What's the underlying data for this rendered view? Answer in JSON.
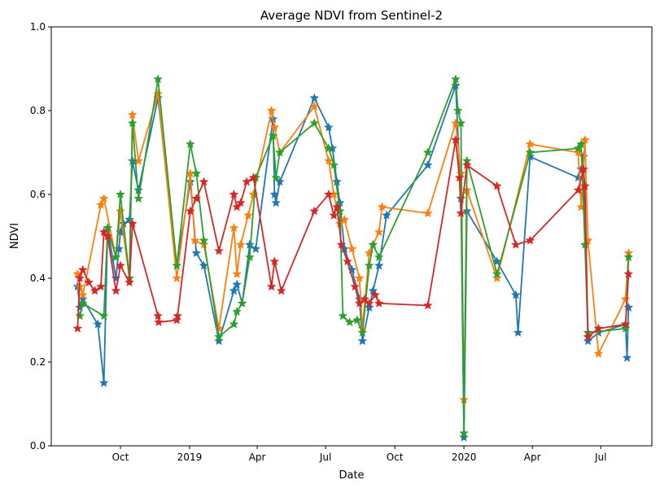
{
  "chart_data": {
    "type": "line",
    "title": "Average NDVI from Sentinel-2",
    "xlabel": "Date",
    "ylabel": "NDVI",
    "xlim": [
      "2018-07-01",
      "2020-09-07"
    ],
    "ylim": [
      0.0,
      1.0
    ],
    "yticks": [
      "0.0",
      "0.2",
      "0.4",
      "0.6",
      "0.8",
      "1.0"
    ],
    "xticks": [
      {
        "date": "2018-10-01",
        "label": "Oct"
      },
      {
        "date": "2019-01-01",
        "label": "2019"
      },
      {
        "date": "2019-04-01",
        "label": "Apr"
      },
      {
        "date": "2019-07-01",
        "label": "Jul"
      },
      {
        "date": "2019-10-01",
        "label": "Oct"
      },
      {
        "date": "2020-01-01",
        "label": "2020"
      },
      {
        "date": "2020-04-01",
        "label": "Apr"
      },
      {
        "date": "2020-07-01",
        "label": "Jul"
      }
    ],
    "grid": false,
    "marker": "star",
    "series": [
      {
        "name": "series-1",
        "color": "#1f77b4",
        "points": [
          [
            "2018-08-05",
            0.38
          ],
          [
            "2018-08-08",
            0.33
          ],
          [
            "2018-08-12",
            0.35
          ],
          [
            "2018-09-01",
            0.29
          ],
          [
            "2018-09-09",
            0.15
          ],
          [
            "2018-09-14",
            0.52
          ],
          [
            "2018-09-25",
            0.4
          ],
          [
            "2018-09-29",
            0.47
          ],
          [
            "2018-10-01",
            0.51
          ],
          [
            "2018-10-05",
            0.53
          ],
          [
            "2018-10-13",
            0.54
          ],
          [
            "2018-10-17",
            0.68
          ],
          [
            "2018-10-25",
            0.61
          ],
          [
            "2018-11-20",
            0.83
          ],
          [
            "2018-12-15",
            0.43
          ],
          [
            "2019-01-02",
            0.63
          ],
          [
            "2019-01-10",
            0.46
          ],
          [
            "2019-01-20",
            0.43
          ],
          [
            "2019-02-09",
            0.25
          ],
          [
            "2019-03-01",
            0.37
          ],
          [
            "2019-03-05",
            0.385
          ],
          [
            "2019-03-12",
            0.34
          ],
          [
            "2019-03-22",
            0.48
          ],
          [
            "2019-03-30",
            0.47
          ],
          [
            "2019-04-22",
            0.78
          ],
          [
            "2019-04-24",
            0.6
          ],
          [
            "2019-04-26",
            0.58
          ],
          [
            "2019-05-01",
            0.63
          ],
          [
            "2019-06-16",
            0.83
          ],
          [
            "2019-07-05",
            0.76
          ],
          [
            "2019-07-10",
            0.71
          ],
          [
            "2019-07-16",
            0.63
          ],
          [
            "2019-07-20",
            0.58
          ],
          [
            "2019-07-26",
            0.47
          ],
          [
            "2019-08-05",
            0.42
          ],
          [
            "2019-08-15",
            0.35
          ],
          [
            "2019-08-19",
            0.25
          ],
          [
            "2019-08-28",
            0.33
          ],
          [
            "2019-09-02",
            0.37
          ],
          [
            "2019-09-10",
            0.43
          ],
          [
            "2019-09-20",
            0.55
          ],
          [
            "2019-11-14",
            0.67
          ],
          [
            "2019-12-21",
            0.86
          ],
          [
            "2019-12-28",
            0.59
          ],
          [
            "2020-01-01",
            0.02
          ],
          [
            "2020-01-05",
            0.56
          ],
          [
            "2020-02-14",
            0.44
          ],
          [
            "2020-03-10",
            0.36
          ],
          [
            "2020-03-13",
            0.27
          ],
          [
            "2020-03-29",
            0.69
          ],
          [
            "2020-06-01",
            0.64
          ],
          [
            "2020-06-05",
            0.66
          ],
          [
            "2020-06-08",
            0.69
          ],
          [
            "2020-06-14",
            0.25
          ],
          [
            "2020-06-28",
            0.27
          ],
          [
            "2020-08-03",
            0.29
          ],
          [
            "2020-08-05",
            0.21
          ],
          [
            "2020-08-07",
            0.33
          ]
        ]
      },
      {
        "name": "series-2",
        "color": "#ff7f0e",
        "points": [
          [
            "2018-08-05",
            0.41
          ],
          [
            "2018-08-08",
            0.38
          ],
          [
            "2018-08-12",
            0.36
          ],
          [
            "2018-09-05",
            0.575
          ],
          [
            "2018-09-09",
            0.59
          ],
          [
            "2018-09-25",
            0.45
          ],
          [
            "2018-10-01",
            0.56
          ],
          [
            "2018-10-13",
            0.4
          ],
          [
            "2018-10-17",
            0.79
          ],
          [
            "2018-10-25",
            0.68
          ],
          [
            "2018-11-20",
            0.84
          ],
          [
            "2018-12-15",
            0.4
          ],
          [
            "2019-01-02",
            0.65
          ],
          [
            "2019-01-08",
            0.49
          ],
          [
            "2019-01-20",
            0.48
          ],
          [
            "2019-02-09",
            0.28
          ],
          [
            "2019-03-01",
            0.52
          ],
          [
            "2019-03-05",
            0.41
          ],
          [
            "2019-03-10",
            0.48
          ],
          [
            "2019-03-20",
            0.55
          ],
          [
            "2019-03-27",
            0.6
          ],
          [
            "2019-04-20",
            0.8
          ],
          [
            "2019-04-24",
            0.76
          ],
          [
            "2019-05-01",
            0.7
          ],
          [
            "2019-06-16",
            0.81
          ],
          [
            "2019-07-05",
            0.68
          ],
          [
            "2019-07-12",
            0.6
          ],
          [
            "2019-07-20",
            0.53
          ],
          [
            "2019-07-26",
            0.54
          ],
          [
            "2019-08-05",
            0.47
          ],
          [
            "2019-08-15",
            0.4
          ],
          [
            "2019-08-19",
            0.28
          ],
          [
            "2019-08-28",
            0.46
          ],
          [
            "2019-09-02",
            0.48
          ],
          [
            "2019-09-10",
            0.51
          ],
          [
            "2019-09-14",
            0.57
          ],
          [
            "2019-11-14",
            0.555
          ],
          [
            "2019-12-21",
            0.77
          ],
          [
            "2019-12-28",
            0.65
          ],
          [
            "2020-01-01",
            0.11
          ],
          [
            "2020-01-05",
            0.61
          ],
          [
            "2020-02-14",
            0.4
          ],
          [
            "2020-03-29",
            0.72
          ],
          [
            "2020-06-01",
            0.7
          ],
          [
            "2020-06-05",
            0.57
          ],
          [
            "2020-06-10",
            0.73
          ],
          [
            "2020-06-14",
            0.49
          ],
          [
            "2020-06-28",
            0.22
          ],
          [
            "2020-08-03",
            0.35
          ],
          [
            "2020-08-07",
            0.46
          ]
        ]
      },
      {
        "name": "series-3",
        "color": "#2ca02c",
        "points": [
          [
            "2018-08-08",
            0.31
          ],
          [
            "2018-08-12",
            0.34
          ],
          [
            "2018-09-09",
            0.31
          ],
          [
            "2018-09-14",
            0.52
          ],
          [
            "2018-09-25",
            0.45
          ],
          [
            "2018-10-01",
            0.6
          ],
          [
            "2018-10-13",
            0.4
          ],
          [
            "2018-10-17",
            0.77
          ],
          [
            "2018-10-25",
            0.59
          ],
          [
            "2018-11-20",
            0.875
          ],
          [
            "2018-12-15",
            0.43
          ],
          [
            "2019-01-02",
            0.72
          ],
          [
            "2019-01-10",
            0.65
          ],
          [
            "2019-01-20",
            0.49
          ],
          [
            "2019-02-09",
            0.26
          ],
          [
            "2019-03-01",
            0.29
          ],
          [
            "2019-03-05",
            0.32
          ],
          [
            "2019-03-12",
            0.34
          ],
          [
            "2019-03-22",
            0.45
          ],
          [
            "2019-03-30",
            0.64
          ],
          [
            "2019-04-22",
            0.74
          ],
          [
            "2019-04-26",
            0.64
          ],
          [
            "2019-05-01",
            0.7
          ],
          [
            "2019-06-16",
            0.77
          ],
          [
            "2019-07-05",
            0.71
          ],
          [
            "2019-07-12",
            0.67
          ],
          [
            "2019-07-20",
            0.56
          ],
          [
            "2019-07-24",
            0.31
          ],
          [
            "2019-08-02",
            0.295
          ],
          [
            "2019-08-12",
            0.3
          ],
          [
            "2019-08-19",
            0.27
          ],
          [
            "2019-08-28",
            0.43
          ],
          [
            "2019-09-02",
            0.48
          ],
          [
            "2019-09-10",
            0.45
          ],
          [
            "2019-11-14",
            0.7
          ],
          [
            "2019-12-21",
            0.875
          ],
          [
            "2019-12-24",
            0.8
          ],
          [
            "2019-12-28",
            0.77
          ],
          [
            "2020-01-01",
            0.03
          ],
          [
            "2020-01-05",
            0.68
          ],
          [
            "2020-02-14",
            0.41
          ],
          [
            "2020-03-29",
            0.7
          ],
          [
            "2020-06-01",
            0.71
          ],
          [
            "2020-06-05",
            0.72
          ],
          [
            "2020-06-10",
            0.48
          ],
          [
            "2020-06-14",
            0.27
          ],
          [
            "2020-08-03",
            0.28
          ],
          [
            "2020-08-07",
            0.45
          ]
        ]
      },
      {
        "name": "series-4",
        "color": "#d62728",
        "points": [
          [
            "2018-08-05",
            0.28
          ],
          [
            "2018-08-08",
            0.4
          ],
          [
            "2018-08-12",
            0.42
          ],
          [
            "2018-08-20",
            0.39
          ],
          [
            "2018-08-28",
            0.37
          ],
          [
            "2018-09-05",
            0.38
          ],
          [
            "2018-09-09",
            0.51
          ],
          [
            "2018-09-14",
            0.5
          ],
          [
            "2018-09-25",
            0.37
          ],
          [
            "2018-10-01",
            0.43
          ],
          [
            "2018-10-13",
            0.39
          ],
          [
            "2018-10-17",
            0.53
          ],
          [
            "2018-11-20",
            0.31
          ],
          [
            "2018-11-21",
            0.295
          ],
          [
            "2018-12-15",
            0.3
          ],
          [
            "2018-12-16",
            0.31
          ],
          [
            "2019-01-02",
            0.56
          ],
          [
            "2019-01-10",
            0.59
          ],
          [
            "2019-01-20",
            0.63
          ],
          [
            "2019-02-09",
            0.465
          ],
          [
            "2019-03-01",
            0.6
          ],
          [
            "2019-03-05",
            0.57
          ],
          [
            "2019-03-10",
            0.58
          ],
          [
            "2019-03-18",
            0.63
          ],
          [
            "2019-03-27",
            0.64
          ],
          [
            "2019-04-20",
            0.38
          ],
          [
            "2019-04-24",
            0.44
          ],
          [
            "2019-05-03",
            0.37
          ],
          [
            "2019-06-16",
            0.56
          ],
          [
            "2019-07-05",
            0.6
          ],
          [
            "2019-07-12",
            0.55
          ],
          [
            "2019-07-16",
            0.57
          ],
          [
            "2019-07-22",
            0.48
          ],
          [
            "2019-07-30",
            0.44
          ],
          [
            "2019-08-09",
            0.38
          ],
          [
            "2019-08-15",
            0.34
          ],
          [
            "2019-08-22",
            0.35
          ],
          [
            "2019-08-28",
            0.34
          ],
          [
            "2019-09-05",
            0.36
          ],
          [
            "2019-09-10",
            0.34
          ],
          [
            "2019-11-14",
            0.335
          ],
          [
            "2019-12-21",
            0.73
          ],
          [
            "2019-12-26",
            0.64
          ],
          [
            "2019-12-28",
            0.555
          ],
          [
            "2020-01-05",
            0.67
          ],
          [
            "2020-02-14",
            0.62
          ],
          [
            "2020-03-10",
            0.48
          ],
          [
            "2020-03-29",
            0.49
          ],
          [
            "2020-06-01",
            0.61
          ],
          [
            "2020-06-08",
            0.66
          ],
          [
            "2020-06-10",
            0.62
          ],
          [
            "2020-06-14",
            0.26
          ],
          [
            "2020-06-28",
            0.28
          ],
          [
            "2020-08-03",
            0.29
          ],
          [
            "2020-08-07",
            0.41
          ]
        ]
      }
    ]
  }
}
